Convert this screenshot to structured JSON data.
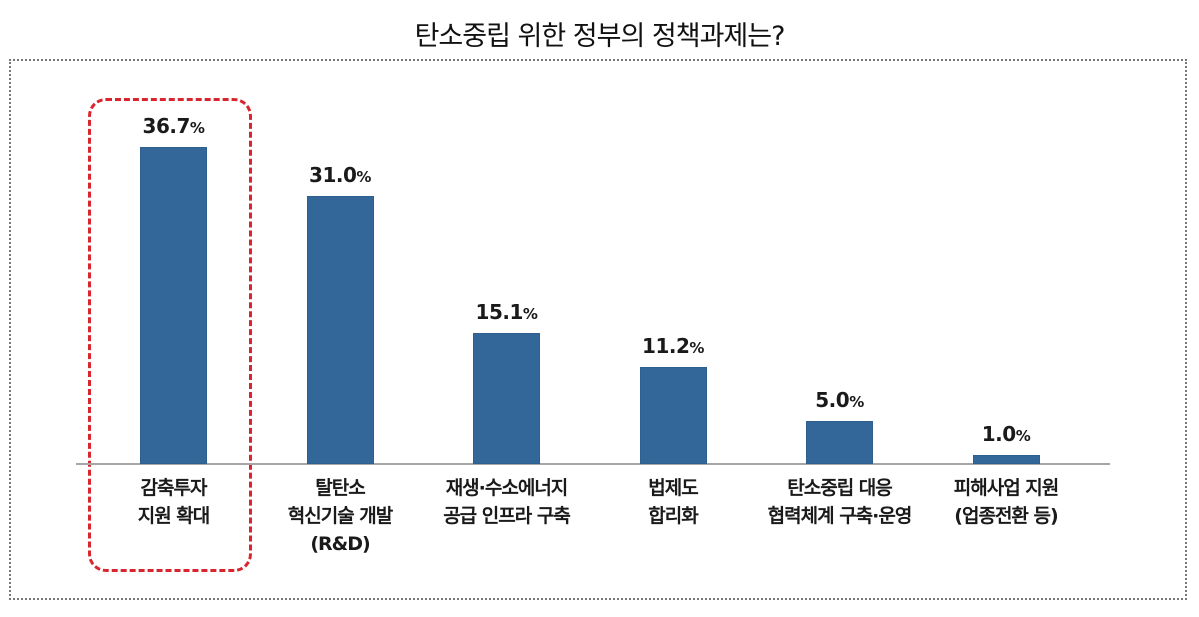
{
  "chart_data": {
    "type": "bar",
    "title": "탄소중립 위한 정부의 정책과제는?",
    "categories": [
      "감축투자 지원 확대",
      "탈탄소 혁신기술 개발 (R&D)",
      "재생·수소에너지 공급 인프라 구축",
      "법제도 합리화",
      "탄소중립 대응 협력체계 구축·운영",
      "피해사업 지원 (업종전환 등)"
    ],
    "values": [
      36.7,
      31.0,
      15.1,
      11.2,
      5.0,
      1.0
    ],
    "unit": "%",
    "xlabel": "",
    "ylabel": "",
    "ylim": [
      0,
      40
    ],
    "grid": false,
    "legend": null,
    "bar_color": "#336699",
    "annotations": [
      {
        "type": "highlight-box",
        "target": "감축투자 지원 확대",
        "style": "red dashed rounded",
        "color": "#d9262e"
      }
    ]
  },
  "title": "탄소중립 위한 정부의 정책과제는?",
  "bars": [
    {
      "value": "36.7",
      "unit": "%",
      "lines": [
        "감축투자",
        "지원 확대"
      ]
    },
    {
      "value": "31.0",
      "unit": "%",
      "lines": [
        "탈탄소",
        "혁신기술 개발",
        "(R&D)"
      ]
    },
    {
      "value": "15.1",
      "unit": "%",
      "lines": [
        "재생·수소에너지",
        "공급 인프라 구축"
      ]
    },
    {
      "value": "11.2",
      "unit": "%",
      "lines": [
        "법제도",
        "합리화"
      ]
    },
    {
      "value": "5.0",
      "unit": "%",
      "lines": [
        "탄소중립 대응",
        "협력체계 구축·운영"
      ]
    },
    {
      "value": "1.0",
      "unit": "%",
      "lines": [
        "피해사업 지원",
        "(업종전환 등)"
      ]
    }
  ]
}
